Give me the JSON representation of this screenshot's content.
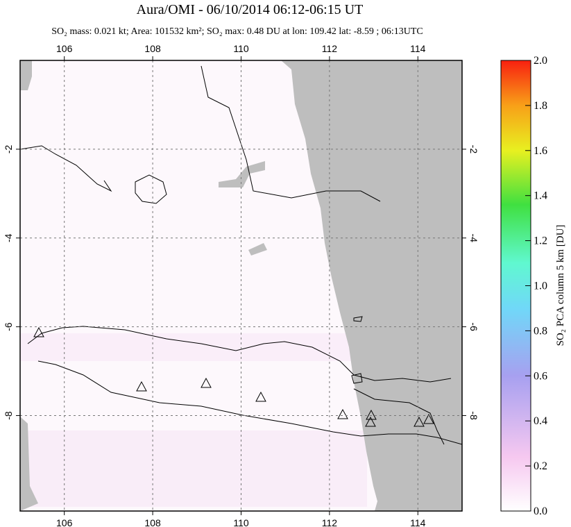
{
  "header": {
    "title": "Aura/OMI - 06/10/2014 06:12-06:15 UT",
    "subtitle": "SO₂ mass: 0.021 kt; Area: 101532 km²; SO₂ max: 0.48 DU at lon: 109.42 lat: -8.59 ; 06:13UTC"
  },
  "map": {
    "xlim": [
      105,
      115
    ],
    "ylim": [
      -10.15,
      0
    ],
    "xticks": [
      106,
      108,
      110,
      112,
      114
    ],
    "yticks": [
      -2,
      -4,
      -6,
      -8
    ],
    "grid": true
  },
  "colorbar": {
    "label": "SO₂ PCA column 5 km [DU]",
    "lim": [
      0,
      2
    ],
    "ticks": [
      {
        "value": 0,
        "label": "0.0"
      },
      {
        "value": 0.2,
        "label": "0.2"
      },
      {
        "value": 0.4,
        "label": "0.4"
      },
      {
        "value": 0.6,
        "label": "0.6"
      },
      {
        "value": 0.8,
        "label": "0.8"
      },
      {
        "value": 1,
        "label": "1.0"
      },
      {
        "value": 1.2,
        "label": "1.2"
      },
      {
        "value": 1.4,
        "label": "1.4"
      },
      {
        "value": 1.6,
        "label": "1.6"
      },
      {
        "value": 1.8,
        "label": "1.8"
      },
      {
        "value": 2,
        "label": "2.0"
      }
    ]
  }
}
